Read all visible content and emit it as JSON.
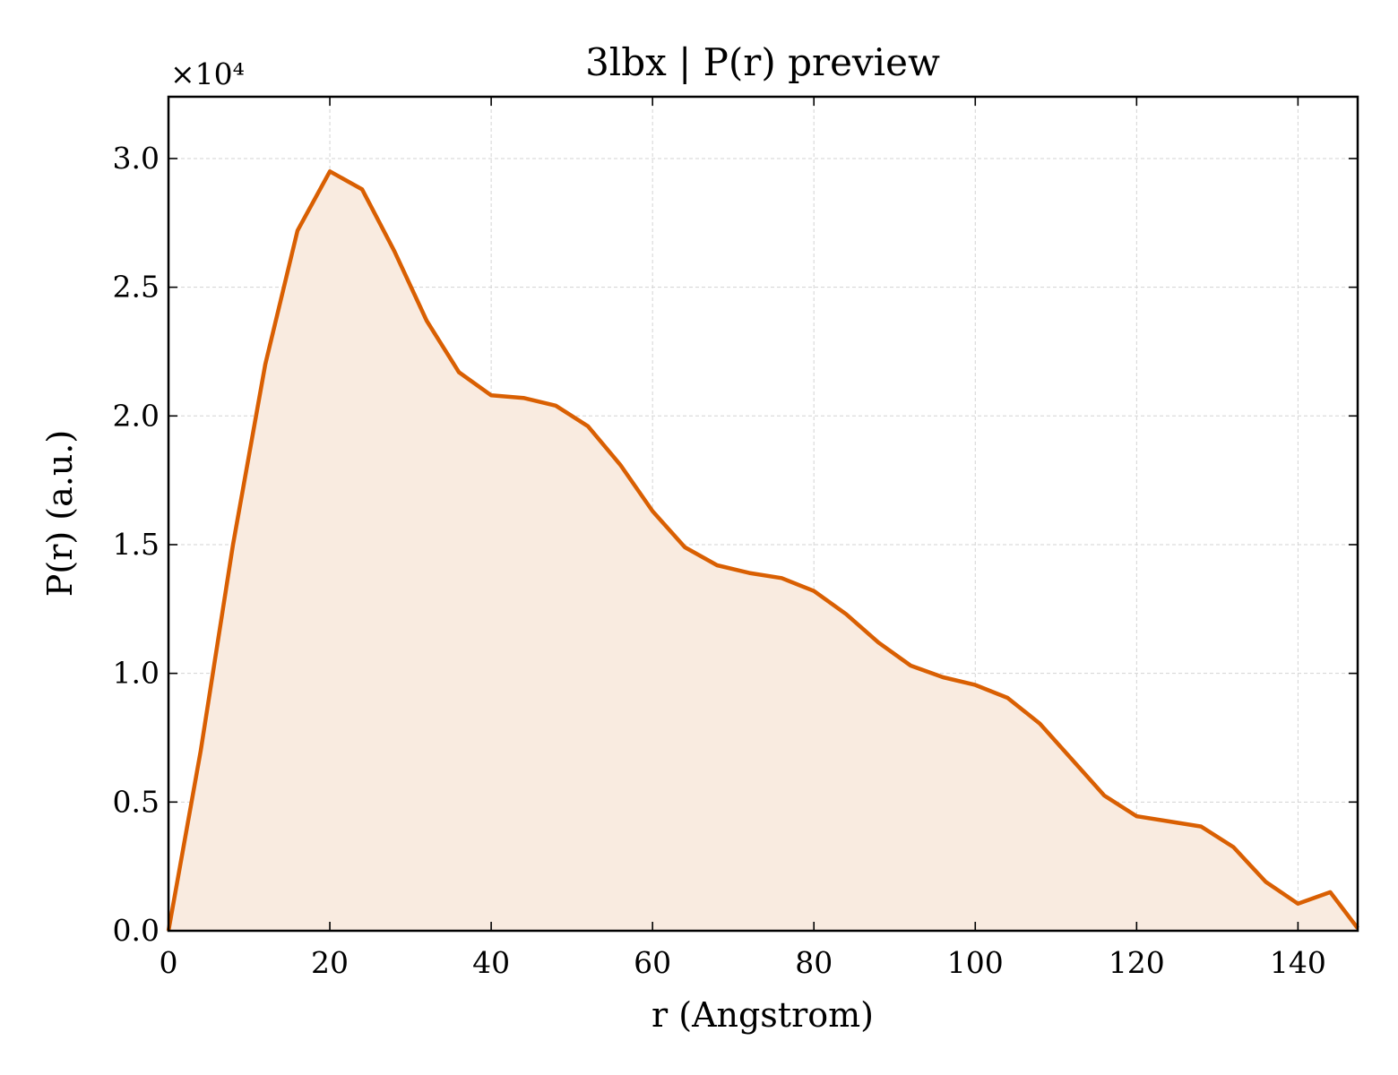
{
  "chart_data": {
    "type": "area",
    "title": "3lbx | P(r) preview",
    "xlabel": "r (Angstrom)",
    "ylabel": "P(r) (a.u.)",
    "y_offset_label": "×10⁴",
    "y_scale": 10000,
    "xlim": [
      0,
      147.4
    ],
    "ylim": [
      0,
      32400
    ],
    "x_ticks": [
      0,
      20,
      40,
      60,
      80,
      100,
      120,
      140
    ],
    "y_ticks": [
      0,
      5000,
      10000,
      15000,
      20000,
      25000,
      30000
    ],
    "y_tick_labels": [
      "0.0",
      "0.5",
      "1.0",
      "1.5",
      "2.0",
      "2.5",
      "3.0"
    ],
    "grid": true,
    "line_color": "#d95f02",
    "fill_color": "#f9ebe0",
    "series": [
      {
        "x": [
          0,
          4,
          8,
          12,
          16,
          20,
          24,
          28,
          32,
          36,
          40,
          44,
          48,
          52,
          56,
          60,
          64,
          68,
          72,
          76,
          80,
          84,
          88,
          92,
          96,
          100,
          104,
          108,
          112,
          116,
          120,
          124,
          128,
          132,
          136,
          140,
          144,
          147.4
        ],
        "y": [
          0,
          7000,
          15000,
          22000,
          27200,
          29500,
          28800,
          26400,
          23700,
          21700,
          20800,
          20700,
          20400,
          19600,
          18100,
          16300,
          14900,
          14200,
          13900,
          13700,
          13200,
          12300,
          11200,
          10300,
          9850,
          9550,
          9050,
          8050,
          6650,
          5250,
          4450,
          4250,
          4050,
          3250,
          1900,
          1050,
          1500,
          100
        ]
      }
    ]
  }
}
